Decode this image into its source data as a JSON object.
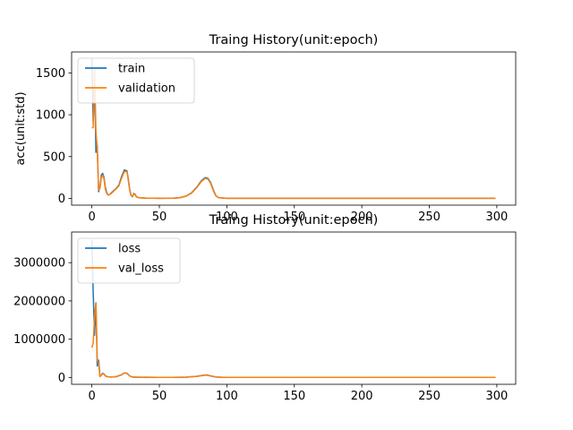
{
  "chart_data": [
    {
      "type": "line",
      "title": "Traing History(unit:epoch)",
      "xlabel": "",
      "ylabel": "acc(unit:std)",
      "xlim": [
        -15,
        314
      ],
      "ylim": [
        -80,
        1750
      ],
      "xticks": [
        0,
        50,
        100,
        150,
        200,
        250,
        300
      ],
      "yticks": [
        0,
        500,
        1000,
        1500
      ],
      "ytick_labels": [
        "0",
        "500",
        "1000",
        "1500"
      ],
      "grid": false,
      "legend": "top-left",
      "series": [
        {
          "name": "train",
          "color": "#1f77b4",
          "points": [
            [
              0,
              1670
            ],
            [
              1,
              900
            ],
            [
              2,
              1450
            ],
            [
              3,
              550
            ],
            [
              4,
              630
            ],
            [
              5,
              80
            ],
            [
              6,
              140
            ],
            [
              7,
              280
            ],
            [
              8,
              300
            ],
            [
              9,
              250
            ],
            [
              10,
              130
            ],
            [
              11,
              70
            ],
            [
              12,
              40
            ],
            [
              13,
              45
            ],
            [
              14,
              60
            ],
            [
              16,
              90
            ],
            [
              18,
              120
            ],
            [
              20,
              160
            ],
            [
              22,
              260
            ],
            [
              24,
              340
            ],
            [
              26,
              330
            ],
            [
              27,
              230
            ],
            [
              28,
              110
            ],
            [
              29,
              40
            ],
            [
              30,
              20
            ],
            [
              31,
              60
            ],
            [
              32,
              50
            ],
            [
              33,
              20
            ],
            [
              35,
              8
            ],
            [
              40,
              4
            ],
            [
              50,
              2
            ],
            [
              60,
              3
            ],
            [
              65,
              8
            ],
            [
              70,
              30
            ],
            [
              74,
              70
            ],
            [
              78,
              140
            ],
            [
              81,
              210
            ],
            [
              84,
              250
            ],
            [
              86,
              240
            ],
            [
              88,
              190
            ],
            [
              90,
              100
            ],
            [
              92,
              30
            ],
            [
              94,
              10
            ],
            [
              96,
              5
            ],
            [
              98,
              4
            ],
            [
              100,
              2
            ],
            [
              150,
              1
            ],
            [
              200,
              1
            ],
            [
              250,
              1
            ],
            [
              299,
              1
            ]
          ]
        },
        {
          "name": "validation",
          "color": "#ff7f0e",
          "points": [
            [
              0,
              840
            ],
            [
              1,
              850
            ],
            [
              2,
              1560
            ],
            [
              3,
              800
            ],
            [
              4,
              600
            ],
            [
              5,
              100
            ],
            [
              6,
              120
            ],
            [
              7,
              250
            ],
            [
              8,
              280
            ],
            [
              9,
              230
            ],
            [
              10,
              110
            ],
            [
              11,
              60
            ],
            [
              12,
              40
            ],
            [
              13,
              45
            ],
            [
              14,
              55
            ],
            [
              16,
              85
            ],
            [
              18,
              115
            ],
            [
              20,
              150
            ],
            [
              22,
              240
            ],
            [
              24,
              320
            ],
            [
              26,
              320
            ],
            [
              27,
              215
            ],
            [
              28,
              100
            ],
            [
              29,
              35
            ],
            [
              30,
              25
            ],
            [
              31,
              55
            ],
            [
              32,
              45
            ],
            [
              33,
              18
            ],
            [
              35,
              8
            ],
            [
              40,
              4
            ],
            [
              50,
              2
            ],
            [
              60,
              3
            ],
            [
              65,
              8
            ],
            [
              70,
              28
            ],
            [
              74,
              65
            ],
            [
              78,
              135
            ],
            [
              81,
              200
            ],
            [
              84,
              240
            ],
            [
              86,
              232
            ],
            [
              88,
              180
            ],
            [
              90,
              90
            ],
            [
              92,
              28
            ],
            [
              94,
              10
            ],
            [
              96,
              5
            ],
            [
              98,
              4
            ],
            [
              100,
              2
            ],
            [
              150,
              1
            ],
            [
              200,
              1
            ],
            [
              250,
              1
            ],
            [
              299,
              1
            ]
          ]
        }
      ]
    },
    {
      "type": "line",
      "title": "Traing History(unit:epoch)",
      "xlabel": "",
      "ylabel": "",
      "xlim": [
        -15,
        314
      ],
      "ylim": [
        -180000,
        3800000
      ],
      "xticks": [
        0,
        50,
        100,
        150,
        200,
        250,
        300
      ],
      "yticks": [
        0,
        1000000,
        2000000,
        3000000
      ],
      "ytick_labels": [
        "0",
        "1000000",
        "2000000",
        "3000000"
      ],
      "grid": false,
      "legend": "top-left",
      "series": [
        {
          "name": "loss",
          "color": "#1f77b4",
          "points": [
            [
              0,
              3600000
            ],
            [
              1,
              2200000
            ],
            [
              2,
              1100000
            ],
            [
              3,
              1950000
            ],
            [
              4,
              300000
            ],
            [
              5,
              450000
            ],
            [
              6,
              30000
            ],
            [
              7,
              60000
            ],
            [
              8,
              110000
            ],
            [
              9,
              90000
            ],
            [
              10,
              40000
            ],
            [
              12,
              15000
            ],
            [
              14,
              10000
            ],
            [
              18,
              20000
            ],
            [
              22,
              70000
            ],
            [
              24,
              120000
            ],
            [
              26,
              110000
            ],
            [
              28,
              40000
            ],
            [
              30,
              10000
            ],
            [
              35,
              5000
            ],
            [
              40,
              3000
            ],
            [
              50,
              2000
            ],
            [
              60,
              2000
            ],
            [
              70,
              8000
            ],
            [
              78,
              30000
            ],
            [
              82,
              55000
            ],
            [
              85,
              65000
            ],
            [
              88,
              40000
            ],
            [
              92,
              10000
            ],
            [
              96,
              4000
            ],
            [
              100,
              2000
            ],
            [
              150,
              1000
            ],
            [
              200,
              1000
            ],
            [
              250,
              1000
            ],
            [
              299,
              1000
            ]
          ]
        },
        {
          "name": "val_loss",
          "color": "#ff7f0e",
          "points": [
            [
              0,
              780000
            ],
            [
              1,
              900000
            ],
            [
              2,
              1600000
            ],
            [
              3,
              1950000
            ],
            [
              4,
              500000
            ],
            [
              5,
              350000
            ],
            [
              6,
              20000
            ],
            [
              7,
              55000
            ],
            [
              8,
              100000
            ],
            [
              9,
              85000
            ],
            [
              10,
              35000
            ],
            [
              12,
              15000
            ],
            [
              14,
              10000
            ],
            [
              18,
              18000
            ],
            [
              22,
              65000
            ],
            [
              24,
              115000
            ],
            [
              26,
              105000
            ],
            [
              28,
              38000
            ],
            [
              30,
              10000
            ],
            [
              35,
              5000
            ],
            [
              40,
              3000
            ],
            [
              50,
              2000
            ],
            [
              60,
              2000
            ],
            [
              70,
              7000
            ],
            [
              78,
              28000
            ],
            [
              82,
              50000
            ],
            [
              85,
              60000
            ],
            [
              88,
              38000
            ],
            [
              92,
              9000
            ],
            [
              96,
              4000
            ],
            [
              100,
              2000
            ],
            [
              150,
              1000
            ],
            [
              200,
              1000
            ],
            [
              250,
              1000
            ],
            [
              299,
              1000
            ]
          ]
        }
      ]
    }
  ]
}
